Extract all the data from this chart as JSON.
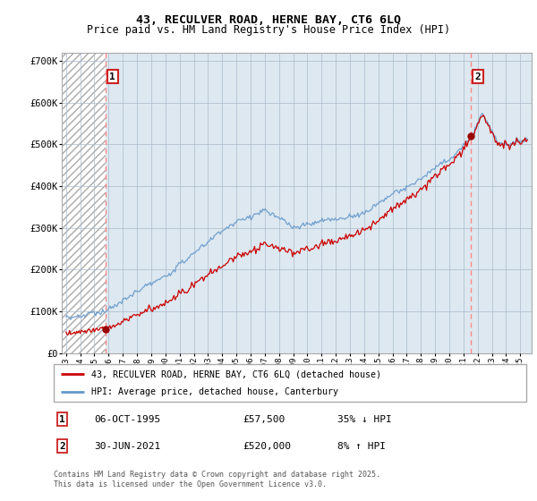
{
  "title_line1": "43, RECULVER ROAD, HERNE BAY, CT6 6LQ",
  "title_line2": "Price paid vs. HM Land Registry's House Price Index (HPI)",
  "background_color": "#ffffff",
  "plot_bg_color": "#dde8f0",
  "ylim": [
    0,
    720000
  ],
  "yticks": [
    0,
    100000,
    200000,
    300000,
    400000,
    500000,
    600000,
    700000
  ],
  "ytick_labels": [
    "£0",
    "£100K",
    "£200K",
    "£300K",
    "£400K",
    "£500K",
    "£600K",
    "£700K"
  ],
  "xlim_start": 1992.7,
  "xlim_end": 2025.8,
  "xtick_years": [
    1993,
    1994,
    1995,
    1996,
    1997,
    1998,
    1999,
    2000,
    2001,
    2002,
    2003,
    2004,
    2005,
    2006,
    2007,
    2008,
    2009,
    2010,
    2011,
    2012,
    2013,
    2014,
    2015,
    2016,
    2017,
    2018,
    2019,
    2020,
    2021,
    2022,
    2023,
    2024,
    2025
  ],
  "marker1_x": 1995.76,
  "marker1_y": 57500,
  "marker2_x": 2021.5,
  "marker2_y": 520000,
  "vline1_x": 1995.76,
  "vline2_x": 2021.5,
  "house_price_line_color": "#cc0000",
  "hpi_line_color": "#6699cc",
  "legend_label1": "43, RECULVER ROAD, HERNE BAY, CT6 6LQ (detached house)",
  "legend_label2": "HPI: Average price, detached house, Canterbury",
  "annotation1_date": "06-OCT-1995",
  "annotation1_price": "£57,500",
  "annotation1_hpi": "35% ↓ HPI",
  "annotation2_date": "30-JUN-2021",
  "annotation2_price": "£520,000",
  "annotation2_hpi": "8% ↑ HPI",
  "footer": "Contains HM Land Registry data © Crown copyright and database right 2025.\nThis data is licensed under the Open Government Licence v3.0."
}
